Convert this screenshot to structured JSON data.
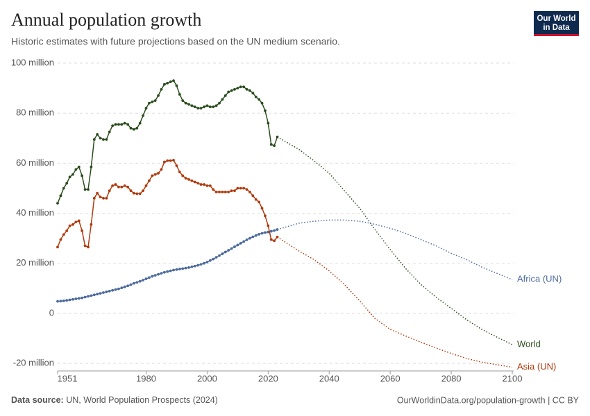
{
  "chart_data": {
    "type": "line",
    "title": "Annual population growth",
    "subtitle": "Historic estimates with future projections based on the UN medium scenario.",
    "source_label": "Data source:",
    "source": "UN, World Population Prospects (2024)",
    "footer_right": "OurWorldinData.org/population-growth | CC BY",
    "logo": [
      "Our World",
      "in Data"
    ],
    "xlim": [
      1951,
      2100
    ],
    "xticks": [
      1951,
      1980,
      2000,
      2020,
      2040,
      2060,
      2080,
      2100
    ],
    "ylim": [
      -23,
      100
    ],
    "yticks": [
      {
        "value": -20,
        "label": "-20 million"
      },
      {
        "value": 0,
        "label": "0"
      },
      {
        "value": 20,
        "label": "20 million"
      },
      {
        "value": 40,
        "label": "40 million"
      },
      {
        "value": 60,
        "label": "60 million"
      },
      {
        "value": 80,
        "label": "80 million"
      },
      {
        "value": 100,
        "label": "100 million"
      }
    ],
    "grid": true,
    "x": [
      1951,
      1952,
      1953,
      1954,
      1955,
      1956,
      1957,
      1958,
      1959,
      1960,
      1961,
      1962,
      1963,
      1964,
      1965,
      1966,
      1967,
      1968,
      1969,
      1970,
      1971,
      1972,
      1973,
      1974,
      1975,
      1976,
      1977,
      1978,
      1979,
      1980,
      1981,
      1982,
      1983,
      1984,
      1985,
      1986,
      1987,
      1988,
      1989,
      1990,
      1991,
      1992,
      1993,
      1994,
      1995,
      1996,
      1997,
      1998,
      1999,
      2000,
      2001,
      2002,
      2003,
      2004,
      2005,
      2006,
      2007,
      2008,
      2009,
      2010,
      2011,
      2012,
      2013,
      2014,
      2015,
      2016,
      2017,
      2018,
      2019,
      2020,
      2021,
      2022,
      2023
    ],
    "projection_x": [
      2023,
      2030,
      2035,
      2040,
      2045,
      2050,
      2055,
      2060,
      2065,
      2070,
      2075,
      2080,
      2085,
      2090,
      2095,
      2100
    ],
    "series": [
      {
        "name": "World",
        "color": "#2b4d1e",
        "values": [
          44,
          47,
          50,
          52,
          54.5,
          55.5,
          57.5,
          58.5,
          55,
          49.5,
          49.5,
          58.5,
          69.5,
          71.5,
          70,
          69.5,
          69.5,
          72.5,
          75,
          75.5,
          75.5,
          75.5,
          76,
          75.5,
          74,
          73.5,
          74,
          76,
          79,
          82,
          84,
          84.5,
          85,
          87,
          89.5,
          91.5,
          92,
          92.5,
          93,
          91,
          87.5,
          85,
          84,
          83.5,
          83,
          82.5,
          82,
          82,
          82.5,
          83,
          82.5,
          82.5,
          83,
          84,
          85.5,
          87,
          88.5,
          89,
          89.5,
          90,
          90.5,
          90.5,
          89.5,
          89,
          88,
          86.5,
          85.5,
          84,
          81,
          76,
          67.5,
          67,
          70.5
        ],
        "projection_values": [
          70.5,
          65.6,
          61,
          56,
          49,
          42,
          33.5,
          25.5,
          18,
          11.6,
          6.5,
          2,
          -2.5,
          -6.4,
          -9.5,
          -12.5
        ]
      },
      {
        "name": "Africa (UN)",
        "color": "#4c6a9c",
        "values": [
          4.8,
          4.9,
          5.0,
          5.2,
          5.4,
          5.6,
          5.8,
          6.0,
          6.2,
          6.5,
          6.8,
          7.1,
          7.4,
          7.7,
          8.0,
          8.3,
          8.6,
          8.9,
          9.2,
          9.5,
          9.8,
          10.2,
          10.6,
          11.0,
          11.5,
          12.0,
          12.4,
          12.8,
          13.3,
          13.8,
          14.3,
          14.8,
          15.2,
          15.6,
          16.0,
          16.4,
          16.7,
          17.0,
          17.3,
          17.5,
          17.7,
          17.9,
          18.1,
          18.3,
          18.6,
          18.9,
          19.2,
          19.6,
          20.0,
          20.5,
          21.1,
          21.7,
          22.4,
          23.1,
          23.8,
          24.5,
          25.2,
          25.9,
          26.6,
          27.3,
          28.0,
          28.7,
          29.4,
          30.0,
          30.6,
          31.1,
          31.6,
          32.0,
          32.3,
          32.5,
          32.8,
          33.1,
          33.5
        ],
        "projection_values": [
          33.5,
          36,
          36.8,
          37.3,
          37.3,
          36.8,
          35.6,
          34,
          32,
          29.5,
          27,
          24,
          21.5,
          18.5,
          16,
          13.5
        ]
      },
      {
        "name": "Asia (UN)",
        "color": "#b13a0d",
        "values": [
          26.5,
          29.5,
          31.5,
          33,
          35,
          35.5,
          36.5,
          37,
          33,
          27,
          26.5,
          35.5,
          46,
          48,
          46.5,
          46,
          46,
          49,
          51,
          51.5,
          50.5,
          50.5,
          51,
          50.5,
          49,
          48,
          47.8,
          47.8,
          49,
          51,
          53,
          55,
          55.5,
          56,
          57.5,
          60.5,
          61,
          61,
          61.2,
          59,
          56.5,
          55,
          54,
          53.5,
          53,
          52.5,
          52,
          51.5,
          51.5,
          51,
          51,
          49.5,
          48.5,
          48.5,
          48.5,
          48.5,
          48.5,
          49,
          49,
          50,
          50,
          50,
          49.5,
          48.5,
          47,
          45.5,
          44.5,
          42,
          39,
          35,
          29.5,
          29,
          30.5
        ],
        "projection_values": [
          30.5,
          25,
          21.5,
          17,
          11.5,
          5,
          -2,
          -6.4,
          -9,
          -11.5,
          -13.8,
          -16,
          -18,
          -19.5,
          -20.5,
          -21.5
        ]
      }
    ]
  }
}
